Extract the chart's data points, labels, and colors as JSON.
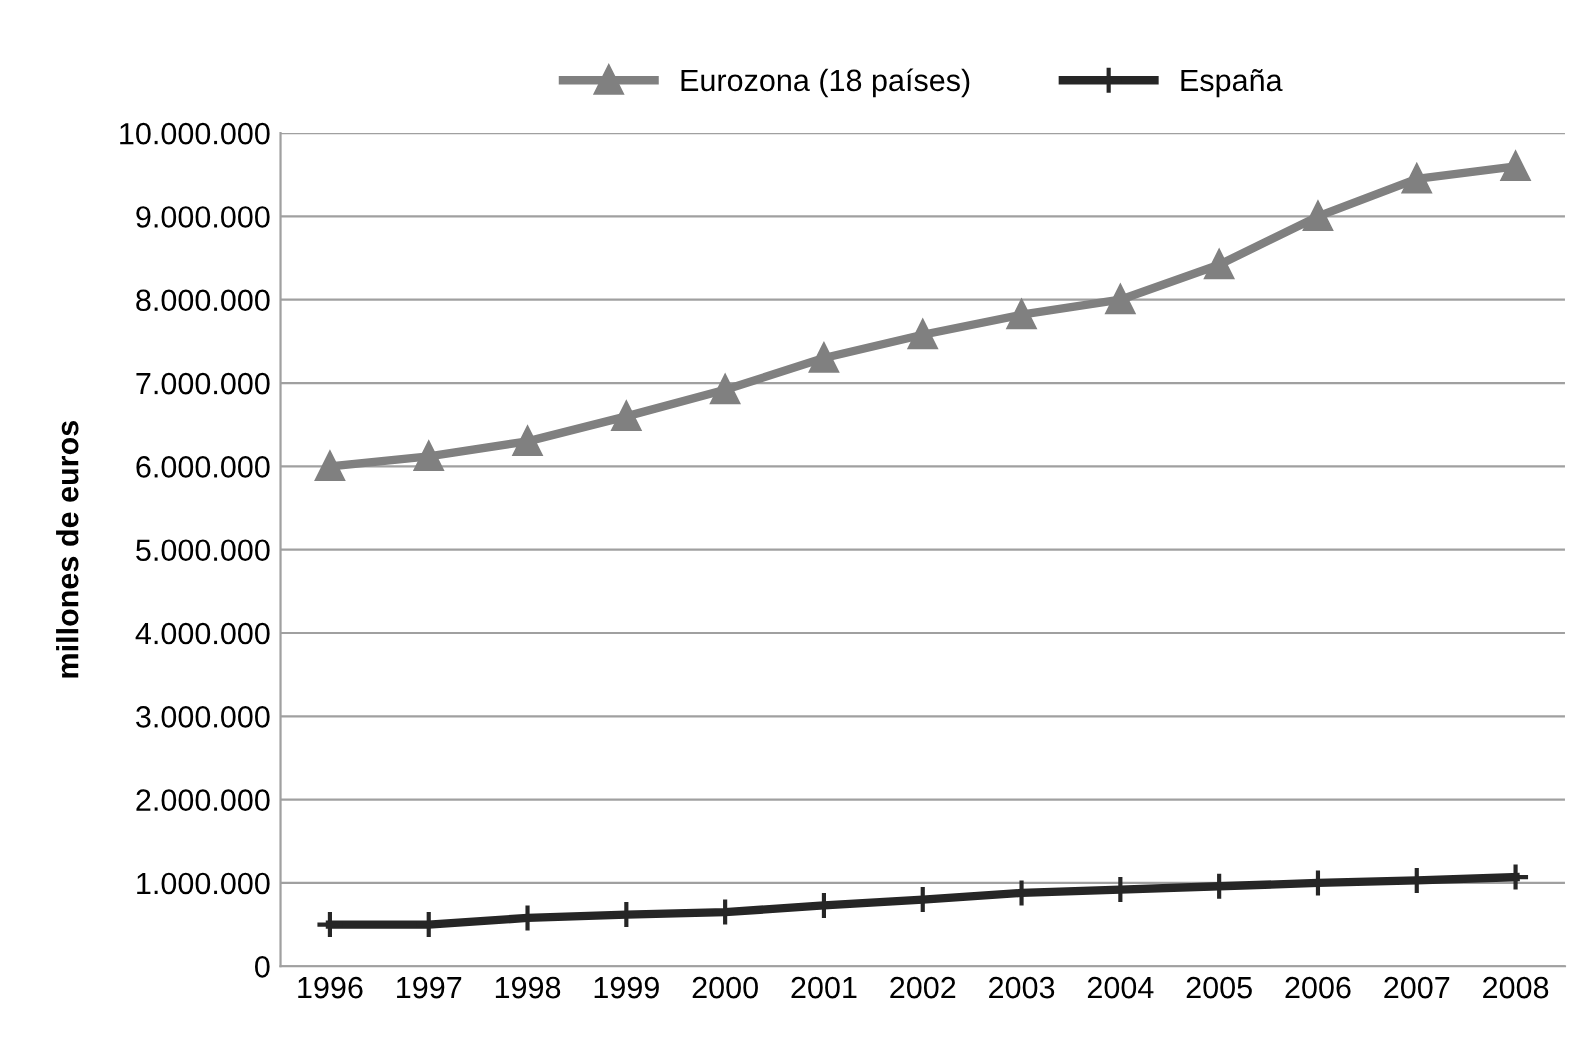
{
  "chart_data": {
    "type": "line",
    "ylabel": "millones de euros",
    "categories": [
      "1996",
      "1997",
      "1998",
      "1999",
      "2000",
      "2001",
      "2002",
      "2003",
      "2004",
      "2005",
      "2006",
      "2007",
      "2008"
    ],
    "series": [
      {
        "name": "Eurozona (18 países)",
        "color": "#808080",
        "marker": "triangle",
        "values": [
          6000000,
          6120000,
          6300000,
          6600000,
          6920000,
          7300000,
          7580000,
          7820000,
          8000000,
          8420000,
          9000000,
          9450000,
          9600000
        ]
      },
      {
        "name": "España",
        "color": "#262626",
        "marker": "cross",
        "values": [
          500000,
          500000,
          580000,
          620000,
          650000,
          730000,
          800000,
          880000,
          920000,
          960000,
          1000000,
          1030000,
          1070000
        ]
      }
    ],
    "ylim": [
      0,
      10000000
    ],
    "yticks": [
      {
        "value": 0,
        "label": "0"
      },
      {
        "value": 1000000,
        "label": "1.000.000"
      },
      {
        "value": 2000000,
        "label": "2.000.000"
      },
      {
        "value": 3000000,
        "label": "3.000.000"
      },
      {
        "value": 4000000,
        "label": "4.000.000"
      },
      {
        "value": 5000000,
        "label": "5.000.000"
      },
      {
        "value": 6000000,
        "label": "6.000.000"
      },
      {
        "value": 7000000,
        "label": "7.000.000"
      },
      {
        "value": 8000000,
        "label": "8.000.000"
      },
      {
        "value": 9000000,
        "label": "9.000.000"
      },
      {
        "value": 10000000,
        "label": "10.000.000"
      }
    ],
    "grid": "y",
    "legend": "top",
    "line_style": "solid"
  }
}
